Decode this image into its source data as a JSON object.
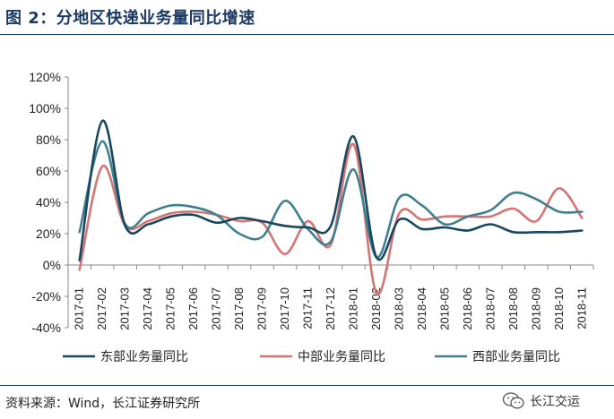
{
  "figure": {
    "title": "图 2：分地区快递业务量同比增速",
    "source": "资料来源：Wind，长江证券研究所",
    "watermark_text": "长江交运",
    "watermark_icon": "wechat-icon"
  },
  "colors": {
    "title": "#1a3a63",
    "east": "#17465f",
    "central": "#d67474",
    "west": "#3f7f8f",
    "axis": "#888888"
  },
  "chart_data": {
    "type": "line",
    "title": "分地区快递业务量同比增速",
    "xlabel": "",
    "ylabel": "",
    "ylim": [
      -40,
      120
    ],
    "y_step": 20,
    "y_unit": "%",
    "grid": false,
    "legend_position": "bottom",
    "categories": [
      "2017-01",
      "2017-02",
      "2017-03",
      "2017-04",
      "2017-05",
      "2017-06",
      "2017-07",
      "2017-08",
      "2017-09",
      "2017-10",
      "2017-11",
      "2017-12",
      "2018-01",
      "2018-02",
      "2018-03",
      "2018-04",
      "2018-05",
      "2018-06",
      "2018-07",
      "2018-08",
      "2018-09",
      "2018-10",
      "2018-11"
    ],
    "series": [
      {
        "name": "东部业务量同比",
        "color_key": "east",
        "values": [
          3,
          92,
          25,
          26,
          31,
          32,
          27,
          30,
          28,
          25,
          24,
          25,
          82,
          5,
          29,
          23,
          24,
          22,
          26,
          21,
          21,
          21,
          22
        ]
      },
      {
        "name": "中部业务量同比",
        "color_key": "central",
        "values": [
          -3,
          63,
          25,
          28,
          33,
          34,
          32,
          28,
          27,
          7,
          28,
          13,
          77,
          -18,
          33,
          29,
          31,
          31,
          31,
          36,
          28,
          49,
          30
        ]
      },
      {
        "name": "西部业务量同比",
        "color_key": "west",
        "values": [
          21,
          79,
          26,
          33,
          38,
          37,
          32,
          20,
          18,
          41,
          23,
          15,
          61,
          5,
          43,
          38,
          26,
          31,
          35,
          46,
          42,
          34,
          34
        ]
      }
    ]
  }
}
